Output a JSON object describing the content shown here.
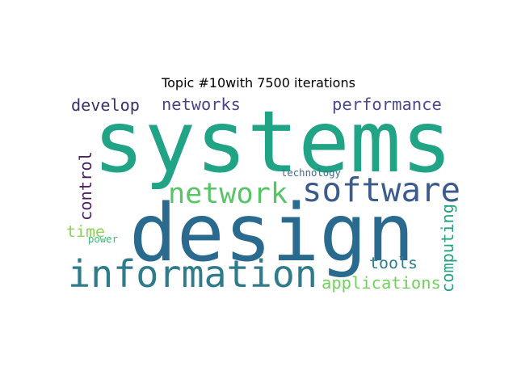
{
  "title": "Topic #10with 7500 iterations",
  "words": [
    {
      "text": "systems",
      "color": "#21a385"
    },
    {
      "text": "design",
      "color": "#2b6a8f"
    },
    {
      "text": "information",
      "color": "#2e7b8c"
    },
    {
      "text": "software",
      "color": "#3a5b8c"
    },
    {
      "text": "network",
      "color": "#57c466"
    },
    {
      "text": "develop",
      "color": "#3b2f6e"
    },
    {
      "text": "networks",
      "color": "#4c4287"
    },
    {
      "text": "performance",
      "color": "#4d4b8f"
    },
    {
      "text": "control",
      "color": "#4a1f63"
    },
    {
      "text": "computing",
      "color": "#27a184"
    },
    {
      "text": "tools",
      "color": "#2c7e88"
    },
    {
      "text": "applications",
      "color": "#73d05d"
    },
    {
      "text": "time",
      "color": "#8fd45a"
    },
    {
      "text": "power",
      "color": "#3cb97a"
    },
    {
      "text": "technology",
      "color": "#3e6b8c"
    }
  ]
}
